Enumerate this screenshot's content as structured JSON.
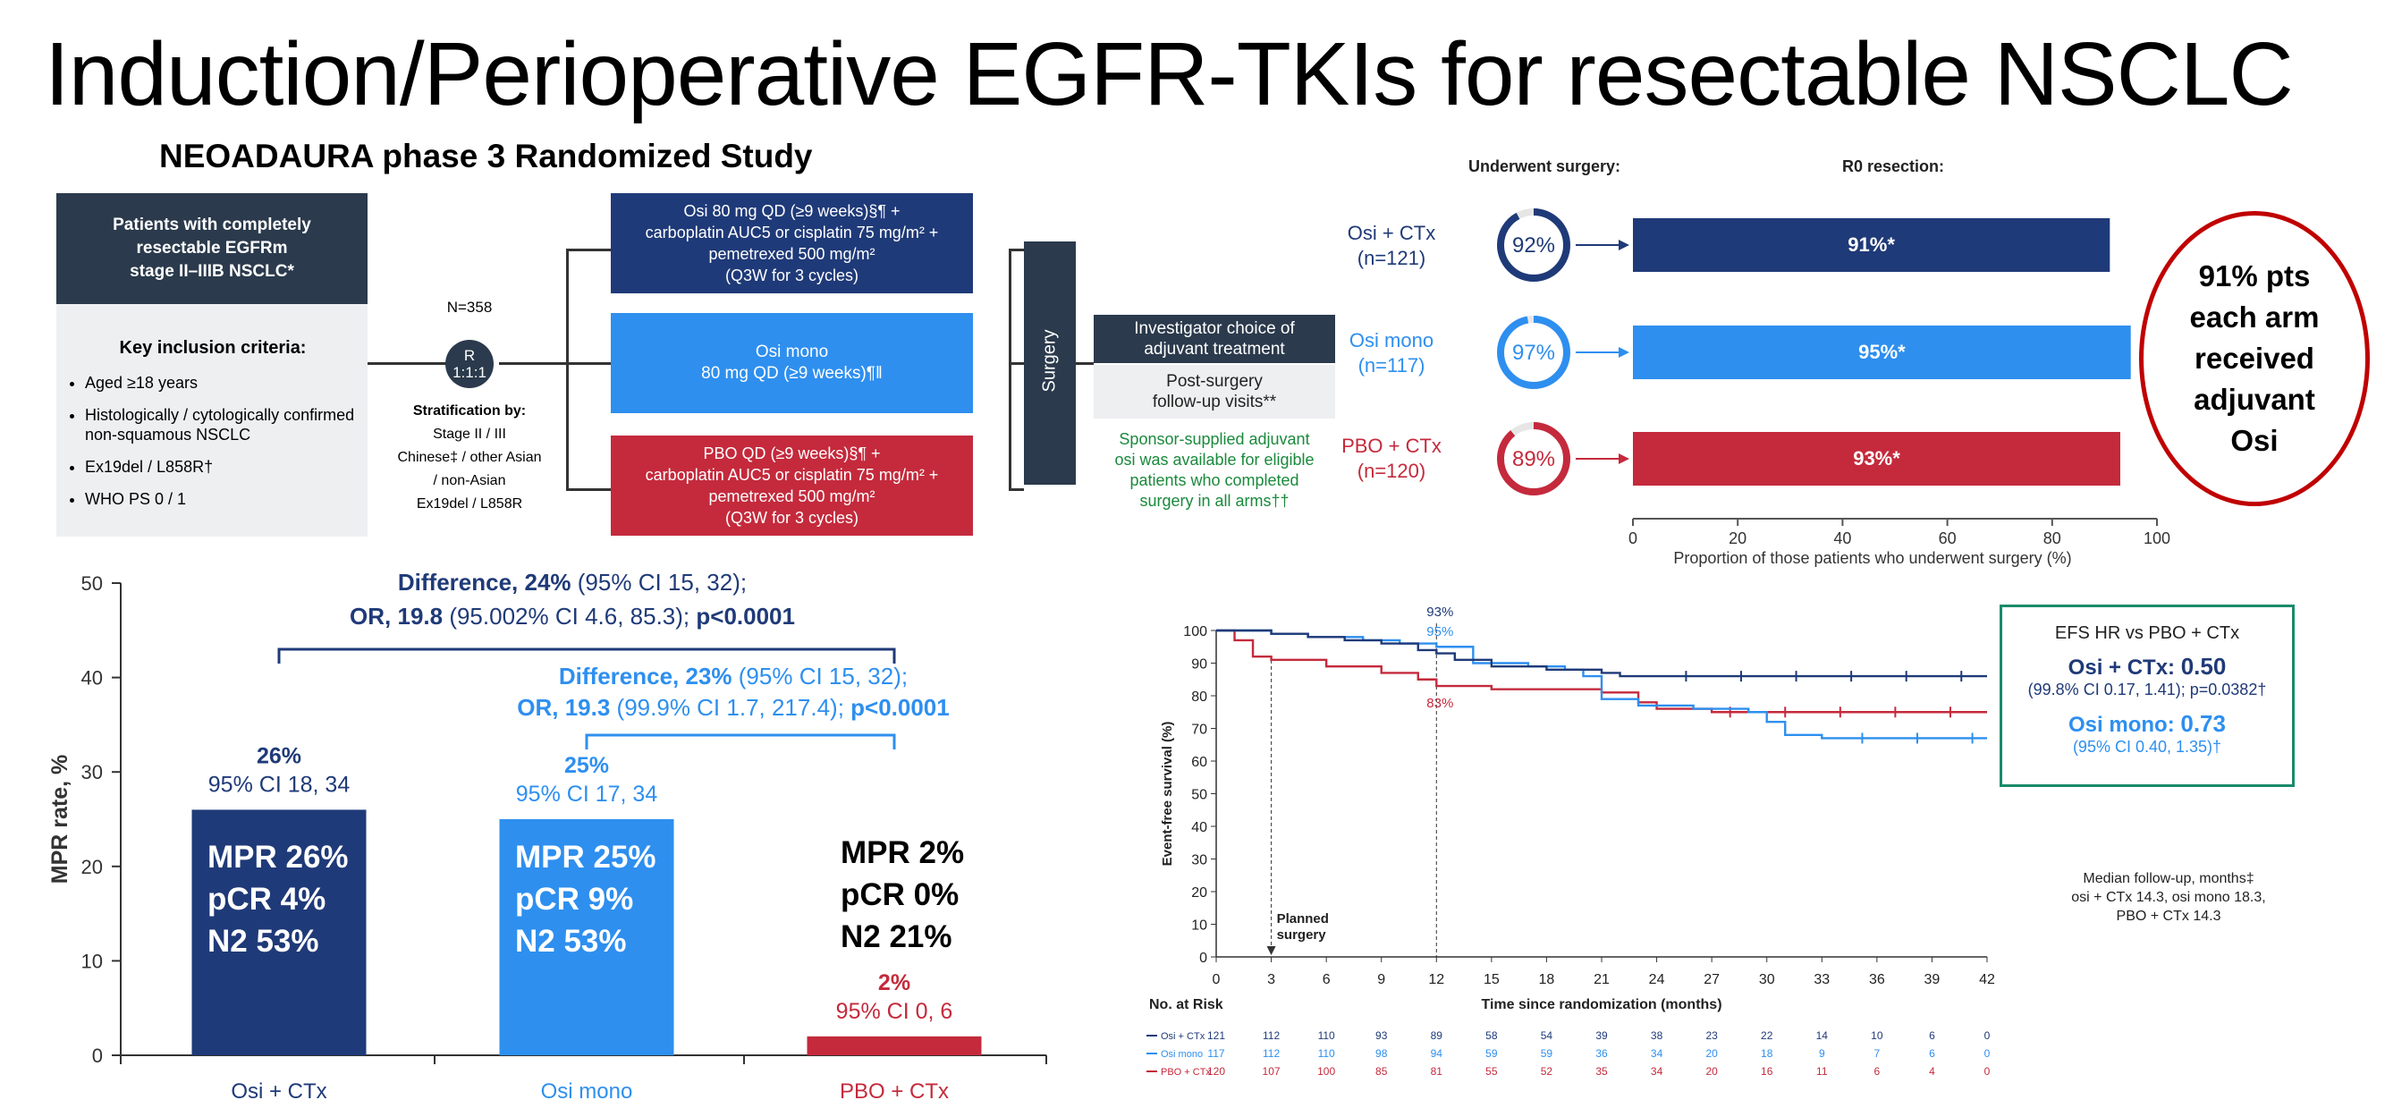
{
  "title": "Induction/Perioperative EGFR-TKIs for resectable NSCLC",
  "colors": {
    "navy": "#1f3a78",
    "blue": "#2e8fef",
    "red": "#c42a3c",
    "dark": "#2b3a4c",
    "green": "#1a8a3c",
    "ring": "#c00000"
  },
  "schema": {
    "study_title": "NEOADAURA phase 3 Randomized Study",
    "patients": [
      "Patients with completely",
      "resectable EGFRm",
      "stage II–IIIB NSCLC*"
    ],
    "criteria_title": "Key inclusion criteria:",
    "criteria": [
      "Aged ≥18 years",
      "Histologically / cytologically confirmed non-squamous NSCLC",
      "Ex19del / L858R†",
      "WHO PS 0 / 1"
    ],
    "n": "N=358",
    "r_label": "R",
    "r_ratio": "1:1:1",
    "strat_title": "Stratification by:",
    "strat_lines": [
      "Stage II / III",
      "Chinese‡ / other Asian",
      "/ non-Asian",
      "Ex19del / L858R"
    ],
    "arm1": [
      "Osi 80 mg QD (≥9 weeks)§¶ +",
      "carboplatin AUC5 or cisplatin 75 mg/m² +",
      "pemetrexed 500 mg/m²",
      "(Q3W for 3 cycles)"
    ],
    "arm2": [
      "Osi mono",
      "80 mg QD (≥9 weeks)¶‖"
    ],
    "arm3": [
      "PBO QD (≥9 weeks)§¶ +",
      "carboplatin AUC5 or cisplatin 75 mg/m² +",
      "pemetrexed 500 mg/m²",
      "(Q3W for 3 cycles)"
    ],
    "surgery": "Surgery",
    "adjuvant": [
      "Investigator choice of",
      "adjuvant treatment"
    ],
    "postsurgery": [
      "Post-surgery",
      "follow-up visits**"
    ],
    "sponsor": [
      "Sponsor-supplied adjuvant",
      "osi was available for eligible",
      "patients who completed",
      "surgery in all arms††"
    ]
  },
  "surgery_panel": {
    "underwent_label": "Underwent surgery:",
    "r0_label": "R0 resection:",
    "arms": [
      {
        "name": "Osi + CTx",
        "n": "(n=121)",
        "surgery": 92,
        "surgery_label": "92%",
        "r0": 91,
        "r0_label": "91%*"
      },
      {
        "name": "Osi mono",
        "n": "(n=117)",
        "surgery": 97,
        "surgery_label": "97%",
        "r0": 95,
        "r0_label": "95%*"
      },
      {
        "name": "PBO + CTx",
        "n": "(n=120)",
        "surgery": 89,
        "surgery_label": "89%",
        "r0": 93,
        "r0_label": "93%*"
      }
    ],
    "axis_ticks": [
      "0",
      "20",
      "40",
      "60",
      "80",
      "100"
    ],
    "axis_label": "Proportion of those patients who underwent surgery (%)",
    "callout": [
      "91% pts",
      "each arm",
      "received",
      "adjuvant",
      "Osi"
    ]
  },
  "chart_data": [
    {
      "type": "bar",
      "categories": [
        "Osi + CTx",
        "Osi mono",
        "PBO + CTx"
      ],
      "values": [
        26,
        25,
        2
      ],
      "ylabel": "MPR rate, %",
      "ylim": [
        0,
        50
      ],
      "yticks": [
        "0",
        "10",
        "20",
        "30",
        "40",
        "50"
      ],
      "value_labels": [
        "26%",
        "25%",
        "2%"
      ],
      "ci_labels": [
        "95% CI 18, 34",
        "95% CI 17, 34",
        "95% CI 0, 6"
      ],
      "inside_labels": [
        [
          "MPR 26%",
          "pCR 4%",
          "N2 53%"
        ],
        [
          "MPR 25%",
          "pCR 9%",
          "N2 53%"
        ],
        [
          "MPR 2%",
          "pCR 0%",
          "N2 21%"
        ]
      ],
      "comparisons": [
        {
          "bold1": "Difference, 24%",
          "rest1": " (95% CI 15, 32);",
          "bold2": "OR, 19.8",
          "rest2": " (95.002% CI 4.6, 85.3); ",
          "p": "p<0.0001"
        },
        {
          "bold1": "Difference, 23%",
          "rest1": " (95% CI 15, 32);",
          "bold2": "OR, 19.3",
          "rest2": " (99.9% CI 1.7, 217.4); ",
          "p": "p<0.0001"
        }
      ]
    },
    {
      "type": "line",
      "ylabel": "Event-free survival (%)",
      "xlabel": "Time since randomization (months)",
      "xlim": [
        0,
        42
      ],
      "ylim": [
        0,
        100
      ],
      "xticks": [
        0,
        3,
        6,
        9,
        12,
        15,
        18,
        21,
        24,
        27,
        30,
        33,
        36,
        39,
        42
      ],
      "yticks": [
        0,
        10,
        20,
        30,
        40,
        50,
        60,
        70,
        80,
        90,
        100
      ],
      "series": [
        {
          "name": "Osi + CTx",
          "points": [
            [
              0,
              100
            ],
            [
              2,
              100
            ],
            [
              3,
              99
            ],
            [
              5,
              98
            ],
            [
              7,
              97
            ],
            [
              9,
              96
            ],
            [
              11,
              94
            ],
            [
              12,
              93
            ],
            [
              13,
              91
            ],
            [
              15,
              89
            ],
            [
              18,
              88
            ],
            [
              21,
              87
            ],
            [
              22,
              86
            ],
            [
              24,
              86
            ],
            [
              42,
              86
            ]
          ]
        },
        {
          "name": "Osi mono",
          "points": [
            [
              0,
              100
            ],
            [
              2,
              100
            ],
            [
              3,
              99
            ],
            [
              5,
              98
            ],
            [
              8,
              97
            ],
            [
              10,
              96
            ],
            [
              12,
              95
            ],
            [
              14,
              90
            ],
            [
              17,
              89
            ],
            [
              19,
              88
            ],
            [
              20,
              86
            ],
            [
              21,
              79
            ],
            [
              23,
              77
            ],
            [
              26,
              76
            ],
            [
              29,
              75
            ],
            [
              30,
              72
            ],
            [
              31,
              68
            ],
            [
              33,
              67
            ],
            [
              42,
              67
            ]
          ]
        },
        {
          "name": "PBO + CTx",
          "points": [
            [
              0,
              100
            ],
            [
              1,
              97
            ],
            [
              2,
              92
            ],
            [
              3,
              91
            ],
            [
              6,
              89
            ],
            [
              9,
              87
            ],
            [
              11,
              85
            ],
            [
              12,
              83
            ],
            [
              15,
              82
            ],
            [
              18,
              82
            ],
            [
              21,
              81
            ],
            [
              23,
              78
            ],
            [
              24,
              76
            ],
            [
              27,
              75
            ],
            [
              42,
              75
            ]
          ]
        }
      ],
      "annotations": {
        "osi_ctx_12": "93%",
        "osi_mono_12": "95%",
        "pbo_12": "83%",
        "planned_surgery": [
          "Planned",
          "surgery"
        ]
      },
      "hr_box": {
        "title": "EFS HR vs PBO + CTx",
        "osi_ctx_label": "Osi + CTx: ",
        "osi_ctx_value": "0.50",
        "osi_ctx_ci": "(99.8% CI 0.17, 1.41); p=0.0382†",
        "osi_mono_label": "Osi mono: ",
        "osi_mono_value": "0.73",
        "osi_mono_ci": "(95% CI 0.40, 1.35)†"
      },
      "followup": [
        "Median follow-up, months‡",
        "osi + CTx 14.3, osi mono 18.3,",
        "PBO + CTx 14.3"
      ],
      "risk_title": "No. at Risk",
      "risk": [
        {
          "name": "Osi + CTx",
          "values": [
            "121",
            "112",
            "110",
            "93",
            "89",
            "58",
            "54",
            "39",
            "38",
            "23",
            "22",
            "14",
            "10",
            "6",
            "0"
          ]
        },
        {
          "name": "Osi mono",
          "values": [
            "117",
            "112",
            "110",
            "98",
            "94",
            "59",
            "59",
            "36",
            "34",
            "20",
            "18",
            "9",
            "7",
            "6",
            "0"
          ]
        },
        {
          "name": "PBO + CTx",
          "values": [
            "120",
            "107",
            "100",
            "85",
            "81",
            "55",
            "52",
            "35",
            "34",
            "20",
            "16",
            "11",
            "6",
            "4",
            "0"
          ]
        }
      ]
    }
  ]
}
